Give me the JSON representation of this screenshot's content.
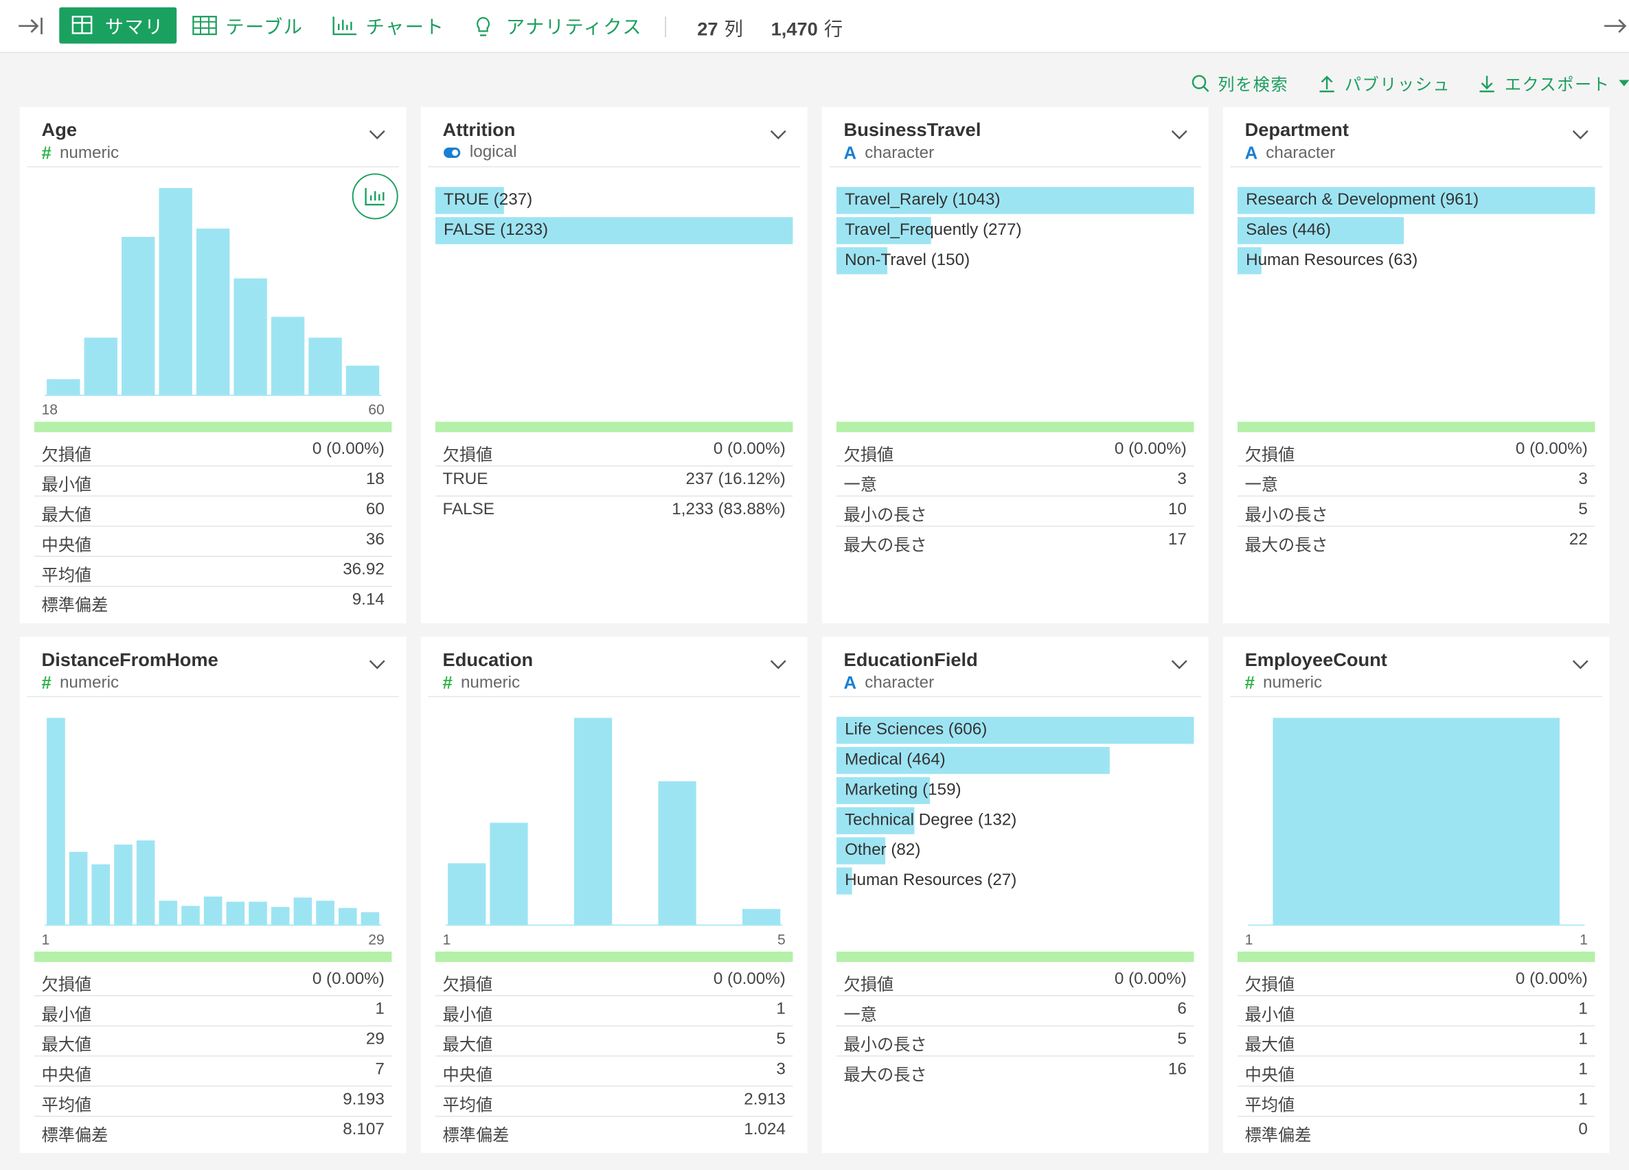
{
  "toolbar": {
    "tabs": [
      "サマリ",
      "テーブル",
      "チャート",
      "アナリティクス"
    ],
    "columns": {
      "count": "27",
      "unit": "列"
    },
    "rows": {
      "count": "1,470",
      "unit": "行"
    }
  },
  "actions": [
    "列を検索",
    "パブリッシュ",
    "エクスポート"
  ],
  "cards": [
    {
      "name": "Age",
      "icon": "#",
      "type": "numeric",
      "chart": {
        "kind": "histogram",
        "values": [
          15,
          55,
          152,
          199,
          160,
          112,
          75,
          55,
          28
        ],
        "min_label": "18",
        "max_label": "60"
      },
      "stats": [
        [
          "欠損値",
          "0 (0.00%)"
        ],
        [
          "最小値",
          "18"
        ],
        [
          "最大値",
          "60"
        ],
        [
          "中央値",
          "36"
        ],
        [
          "平均値",
          "36.92"
        ],
        [
          "標準偏差",
          "9.14"
        ]
      ]
    },
    {
      "name": "Attrition",
      "icon": null,
      "type": "logical",
      "chart": {
        "kind": "categories",
        "bars": [
          {
            "label": "TRUE (237)",
            "count": 237
          },
          {
            "label": "FALSE (1233)",
            "count": 1233
          }
        ]
      },
      "stats": [
        [
          "欠損値",
          "0 (0.00%)"
        ],
        [
          "TRUE",
          "237 (16.12%)"
        ],
        [
          "FALSE",
          "1,233 (83.88%)"
        ]
      ]
    },
    {
      "name": "BusinessTravel",
      "icon": "A",
      "type": "character",
      "chart": {
        "kind": "categories",
        "bars": [
          {
            "label": "Travel_Rarely (1043)",
            "count": 1043
          },
          {
            "label": "Travel_Frequently (277)",
            "count": 277
          },
          {
            "label": "Non-Travel (150)",
            "count": 150
          }
        ]
      },
      "stats": [
        [
          "欠損値",
          "0 (0.00%)"
        ],
        [
          "一意",
          "3"
        ],
        [
          "最小の長さ",
          "10"
        ],
        [
          "最大の長さ",
          "17"
        ]
      ]
    },
    {
      "name": "Department",
      "icon": "A",
      "type": "character",
      "chart": {
        "kind": "categories",
        "bars": [
          {
            "label": "Research & Development (961)",
            "count": 961
          },
          {
            "label": "Sales (446)",
            "count": 446
          },
          {
            "label": "Human Resources (63)",
            "count": 63
          }
        ]
      },
      "stats": [
        [
          "欠損値",
          "0 (0.00%)"
        ],
        [
          "一意",
          "3"
        ],
        [
          "最小の長さ",
          "5"
        ],
        [
          "最大の長さ",
          "22"
        ]
      ]
    },
    {
      "name": "DistanceFromHome",
      "icon": "#",
      "type": "numeric",
      "chart": {
        "kind": "histogram",
        "values": [
          199,
          70,
          58,
          77,
          81,
          23,
          18,
          27,
          22,
          22,
          17,
          26,
          23,
          16,
          12
        ],
        "min_label": "1",
        "max_label": "29"
      },
      "stats": [
        [
          "欠損値",
          "0 (0.00%)"
        ],
        [
          "最小値",
          "1"
        ],
        [
          "最大値",
          "29"
        ],
        [
          "中央値",
          "7"
        ],
        [
          "平均値",
          "9.193"
        ],
        [
          "標準偏差",
          "8.107"
        ]
      ]
    },
    {
      "name": "Education",
      "icon": "#",
      "type": "numeric",
      "chart": {
        "kind": "histogram",
        "values": [
          59,
          98,
          0,
          199,
          0,
          138,
          0,
          15
        ],
        "min_label": "1",
        "max_label": "5"
      },
      "stats": [
        [
          "欠損値",
          "0 (0.00%)"
        ],
        [
          "最小値",
          "1"
        ],
        [
          "最大値",
          "5"
        ],
        [
          "中央値",
          "3"
        ],
        [
          "平均値",
          "2.913"
        ],
        [
          "標準偏差",
          "1.024"
        ]
      ]
    },
    {
      "name": "EducationField",
      "icon": "A",
      "type": "character",
      "chart": {
        "kind": "categories",
        "bars": [
          {
            "label": "Life Sciences (606)",
            "count": 606
          },
          {
            "label": "Medical (464)",
            "count": 464
          },
          {
            "label": "Marketing (159)",
            "count": 159
          },
          {
            "label": "Technical Degree (132)",
            "count": 132
          },
          {
            "label": "Other (82)",
            "count": 82
          },
          {
            "label": "Human Resources (27)",
            "count": 27
          }
        ]
      },
      "stats": [
        [
          "欠損値",
          "0 (0.00%)"
        ],
        [
          "一意",
          "6"
        ],
        [
          "最小の長さ",
          "5"
        ],
        [
          "最大の長さ",
          "16"
        ]
      ]
    },
    {
      "name": "EmployeeCount",
      "icon": "#",
      "type": "numeric",
      "chart": {
        "kind": "histogram",
        "values": [
          199
        ],
        "min_label": "1",
        "max_label": "1"
      },
      "stats": [
        [
          "欠損値",
          "0 (0.00%)"
        ],
        [
          "最小値",
          "1"
        ],
        [
          "最大値",
          "1"
        ],
        [
          "中央値",
          "1"
        ],
        [
          "平均値",
          "1"
        ],
        [
          "標準偏差",
          "0"
        ]
      ]
    }
  ]
}
